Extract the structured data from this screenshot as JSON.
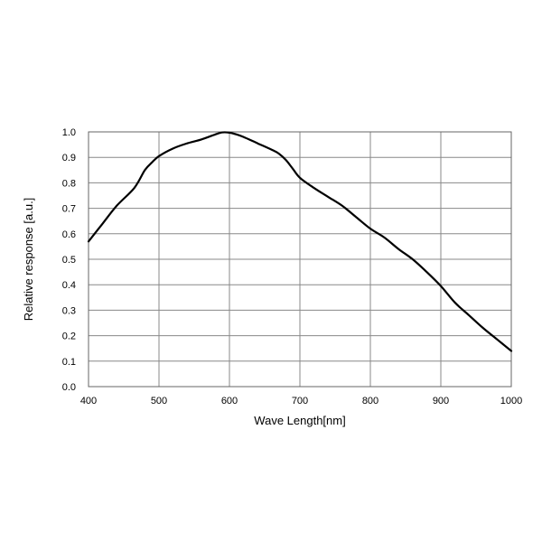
{
  "chart_data": {
    "type": "line",
    "xlabel": "Wave Length[nm]",
    "ylabel": "Relative response [a.u.]",
    "xlim": [
      400,
      1000
    ],
    "ylim": [
      0,
      1.0
    ],
    "x_ticks": [
      "400",
      "500",
      "600",
      "700",
      "800",
      "900",
      "1000"
    ],
    "y_ticks": [
      "0.0",
      "0.1",
      "0.2",
      "0.3",
      "0.4",
      "0.5",
      "0.6",
      "0.7",
      "0.8",
      "0.9",
      "1.0"
    ],
    "grid": true,
    "series": [
      {
        "color": "#000000",
        "x": [
          400,
          420,
          440,
          465,
          480,
          490,
          500,
          520,
          540,
          560,
          580,
          590,
          600,
          610,
          620,
          640,
          660,
          670,
          680,
          690,
          700,
          720,
          740,
          760,
          780,
          800,
          820,
          840,
          860,
          880,
          900,
          920,
          940,
          960,
          980,
          1000
        ],
        "y": [
          0.57,
          0.64,
          0.71,
          0.78,
          0.85,
          0.88,
          0.905,
          0.935,
          0.955,
          0.97,
          0.99,
          0.998,
          0.997,
          0.99,
          0.98,
          0.955,
          0.93,
          0.915,
          0.89,
          0.855,
          0.82,
          0.78,
          0.745,
          0.71,
          0.665,
          0.62,
          0.585,
          0.54,
          0.5,
          0.45,
          0.395,
          0.33,
          0.28,
          0.23,
          0.185,
          0.14
        ]
      }
    ]
  }
}
